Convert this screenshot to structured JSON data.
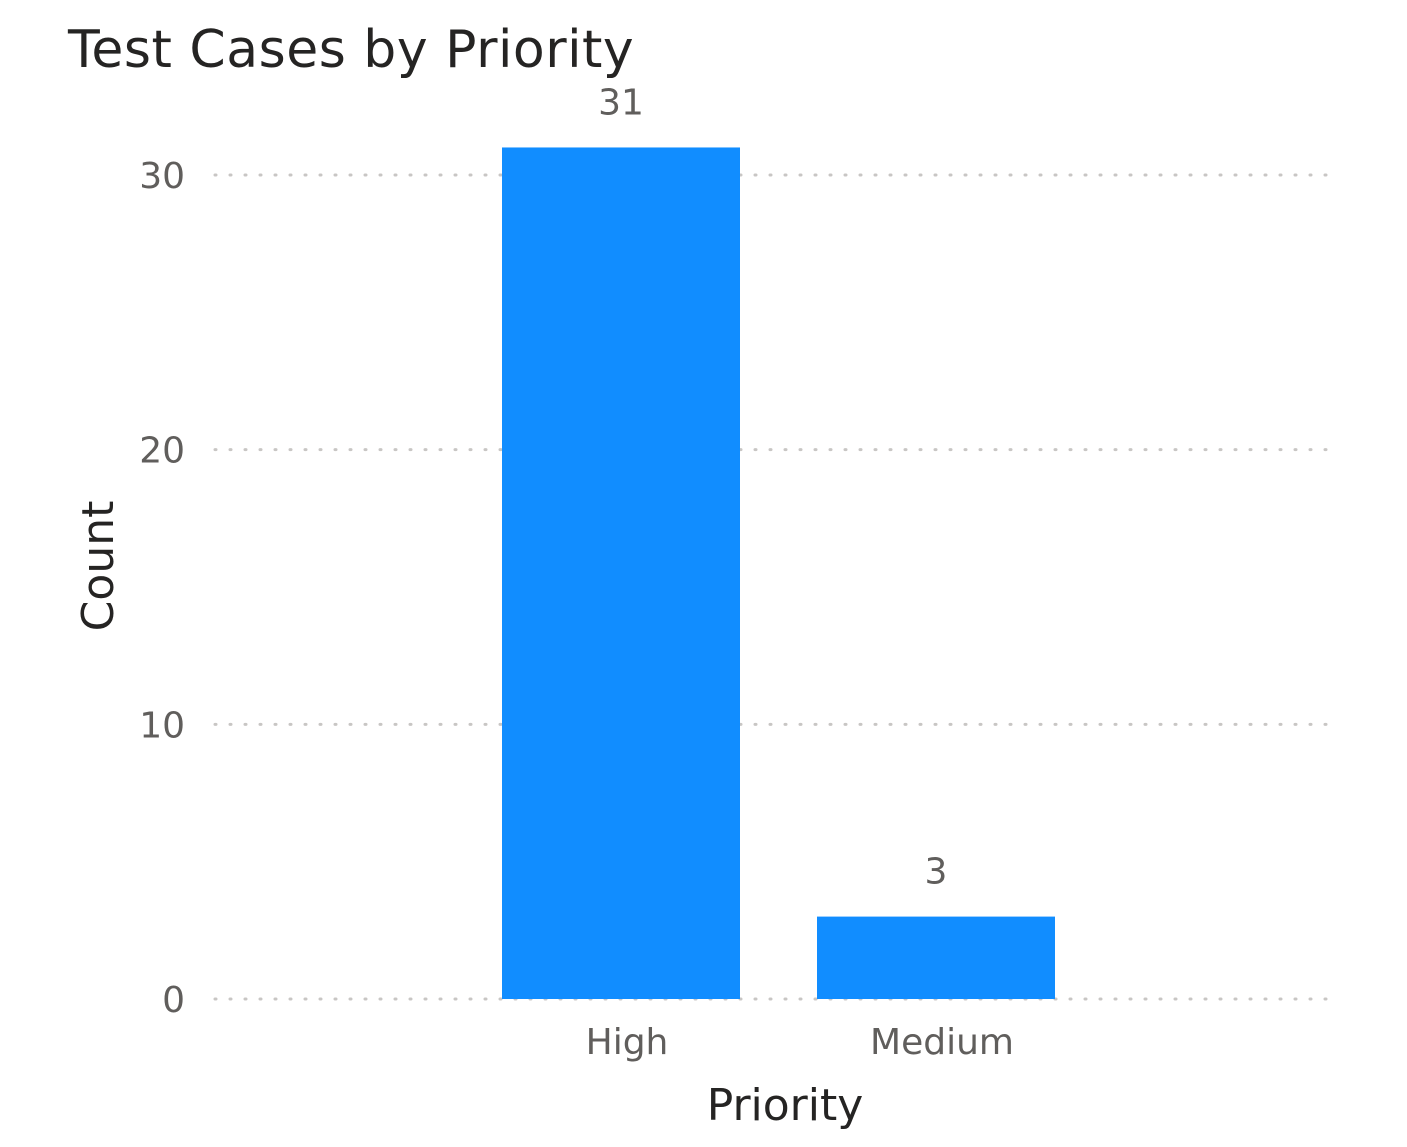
{
  "chart_data": {
    "type": "bar",
    "title": "Test Cases by Priority",
    "xlabel": "Priority",
    "ylabel": "Count",
    "categories": [
      "High",
      "Medium"
    ],
    "values": [
      31,
      3
    ],
    "data_labels": [
      "31",
      "3"
    ],
    "ylim": [
      0,
      32
    ],
    "yticks": [
      0,
      10,
      20,
      30
    ],
    "ytick_labels": [
      "0",
      "10",
      "20",
      "30"
    ],
    "grid": true,
    "grid_style": "dotted",
    "bar_color": "#118DFF",
    "legend": "none"
  }
}
